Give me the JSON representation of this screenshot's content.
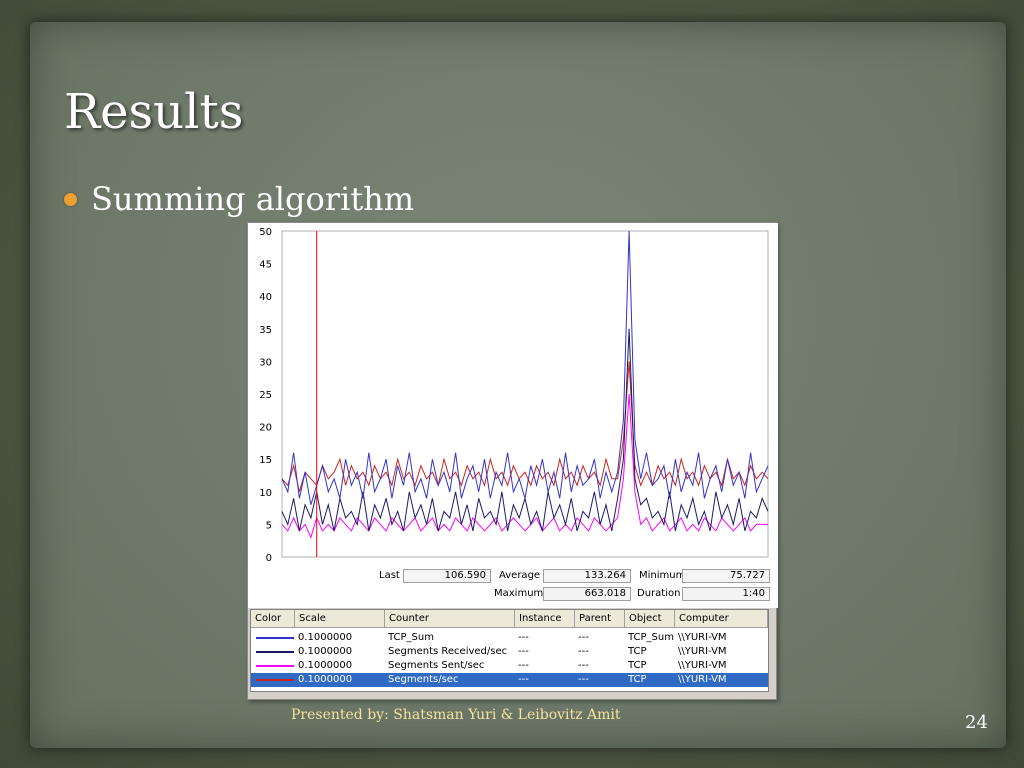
{
  "slide": {
    "title": "Results",
    "bullet": "Summing algorithm",
    "footer": "Presented by: Shatsman Yuri & Leibovitz Amit",
    "page_number": "24"
  },
  "colors": {
    "bullet": "#f0a030",
    "footer_text": "#f4e3a0",
    "selection": "#316ac5",
    "marker_line": "#ff0000"
  },
  "stats": {
    "last_label": "Last",
    "last_value": "106.590",
    "average_label": "Average",
    "average_value": "133.264",
    "minimum_label": "Minimum",
    "minimum_value": "75.727",
    "maximum_label": "Maximum",
    "maximum_value": "663.018",
    "duration_label": "Duration",
    "duration_value": "1:40"
  },
  "grid": {
    "headers": [
      "Color",
      "Scale",
      "Counter",
      "Instance",
      "Parent",
      "Object",
      "Computer"
    ],
    "rows": [
      {
        "color": "#3333cc",
        "scale": "0.1000000",
        "counter": "TCP_Sum",
        "instance": "---",
        "parent": "---",
        "object": "TCP_Sum",
        "computer": "\\\\YURI-VM",
        "selected": false
      },
      {
        "color": "#1a1a66",
        "scale": "0.1000000",
        "counter": "Segments Received/sec",
        "instance": "---",
        "parent": "---",
        "object": "TCP",
        "computer": "\\\\YURI-VM",
        "selected": false
      },
      {
        "color": "#ff00ff",
        "scale": "0.1000000",
        "counter": "Segments Sent/sec",
        "instance": "---",
        "parent": "---",
        "object": "TCP",
        "computer": "\\\\YURI-VM",
        "selected": false
      },
      {
        "color": "#cc2222",
        "scale": "0.1000000",
        "counter": "Segments/sec",
        "instance": "---",
        "parent": "---",
        "object": "TCP",
        "computer": "\\\\YURI-VM",
        "selected": true
      }
    ]
  },
  "chart_data": {
    "type": "line",
    "ylim": [
      0,
      50
    ],
    "yticks": [
      "50",
      "45",
      "40",
      "35",
      "30",
      "25",
      "20",
      "15",
      "10",
      "5",
      "0"
    ],
    "grid": false,
    "marker_index": 6,
    "series": [
      {
        "name": "TCP_Sum",
        "color": "#3333cc",
        "values": [
          12,
          10,
          16,
          9,
          13,
          8,
          11,
          14,
          10,
          12,
          9,
          15,
          11,
          13,
          9,
          16,
          10,
          12,
          15,
          9,
          14,
          11,
          16,
          10,
          12,
          9,
          15,
          11,
          13,
          10,
          16,
          9,
          12,
          14,
          10,
          15,
          9,
          13,
          11,
          16,
          10,
          12,
          9,
          14,
          11,
          15,
          10,
          13,
          9,
          16,
          10,
          14,
          11,
          12,
          15,
          9,
          13,
          10,
          16,
          11,
          12,
          14,
          9,
          15,
          10,
          13,
          11,
          16,
          9,
          12,
          14,
          10,
          15,
          11,
          13,
          9,
          16,
          10,
          12,
          14
        ]
      },
      {
        "name": "Segments Received/sec",
        "color": "#1a1a66",
        "values": [
          7,
          5,
          9,
          4,
          8,
          6,
          10,
          5,
          8,
          4,
          9,
          6,
          7,
          5,
          10,
          4,
          8,
          6,
          9,
          5,
          7,
          4,
          10,
          6,
          8,
          5,
          9,
          4,
          7,
          6,
          10,
          5,
          8,
          4,
          9,
          6,
          7,
          5,
          10,
          4,
          8,
          6,
          9,
          5,
          7,
          4,
          10,
          6,
          8,
          5,
          9,
          4,
          7,
          6,
          10,
          5,
          8,
          4,
          9,
          6,
          7,
          5,
          10,
          4,
          8,
          6,
          9,
          5,
          7,
          4,
          10,
          6,
          8,
          5,
          9,
          4,
          7,
          6,
          9,
          7
        ]
      },
      {
        "name": "Segments Sent/sec",
        "color": "#ff00ff",
        "values": [
          5,
          4,
          6,
          4,
          5,
          3,
          6,
          4,
          5,
          4,
          6,
          5,
          4,
          6,
          5,
          4,
          6,
          5,
          4,
          6,
          5,
          4,
          5,
          6,
          4,
          5,
          6,
          4,
          5,
          4,
          6,
          5,
          4,
          6,
          5,
          4,
          5,
          6,
          4,
          5,
          6,
          5,
          4,
          5,
          6,
          4,
          5,
          6,
          4,
          5,
          4,
          6,
          5,
          4,
          6,
          5,
          4,
          5,
          6,
          4,
          5,
          6,
          4,
          5,
          6,
          4,
          5,
          4,
          6,
          5,
          4,
          6,
          5,
          4,
          5,
          6,
          4,
          5,
          5,
          5
        ]
      },
      {
        "name": "Segments/sec",
        "color": "#cc2222",
        "values": [
          12,
          11,
          14,
          10,
          13,
          12,
          11,
          14,
          12,
          13,
          15,
          11,
          14,
          12,
          13,
          11,
          14,
          12,
          13,
          11,
          15,
          12,
          13,
          11,
          14,
          12,
          13,
          11,
          15,
          12,
          13,
          11,
          14,
          12,
          13,
          11,
          15,
          12,
          13,
          11,
          14,
          12,
          13,
          11,
          14,
          12,
          13,
          11,
          15,
          12,
          13,
          11,
          14,
          12,
          13,
          11,
          15,
          12,
          13,
          11,
          14,
          12,
          13,
          11,
          15,
          12,
          13,
          11,
          14,
          12,
          13,
          11,
          15,
          12,
          13,
          11,
          14,
          12,
          13,
          12
        ]
      }
    ],
    "spike": {
      "TCP_Sum": [
        13,
        21,
        50,
        18,
        12
      ],
      "Segments Received/sec": [
        9,
        15,
        35,
        12,
        8
      ],
      "Segments Sent/sec": [
        6,
        12,
        25,
        10,
        5
      ],
      "Segments/sec": [
        12,
        18,
        30,
        14,
        11
      ]
    },
    "spike_start_index": 58
  }
}
